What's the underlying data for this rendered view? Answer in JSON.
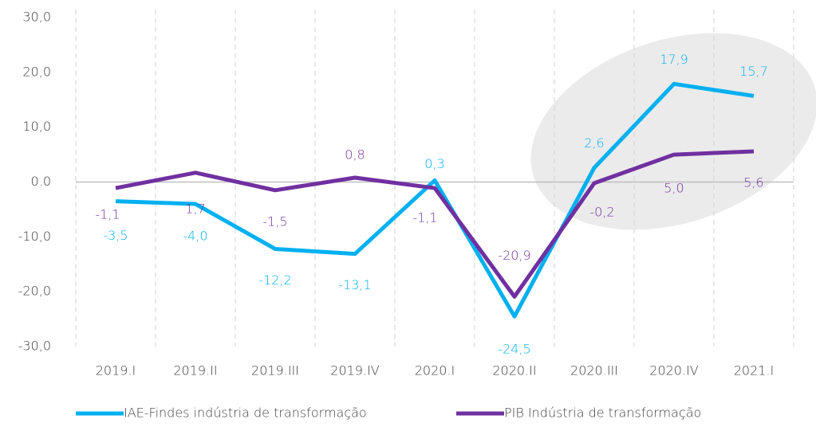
{
  "chart_data": {
    "type": "line",
    "categories": [
      "2019.I",
      "2019.II",
      "2019.III",
      "2019.IV",
      "2020.I",
      "2020.II",
      "2020.III",
      "2020.IV",
      "2021.I"
    ],
    "series": [
      {
        "name": "IAE-Findes indústria de transformação",
        "color": "#00b0f0",
        "values": [
          -3.5,
          -4.0,
          -12.2,
          -13.1,
          0.3,
          -24.5,
          2.6,
          17.9,
          15.7
        ],
        "value_labels": [
          "-3,5",
          "-4,0",
          "-12,2",
          "-13,1",
          "0,3",
          "-24,5",
          "2,6",
          "17,9",
          "15,7"
        ]
      },
      {
        "name": "PIB Indústria de transformação",
        "color": "#7030a0",
        "values": [
          -1.1,
          1.7,
          -1.5,
          0.8,
          -1.1,
          -20.9,
          -0.2,
          5.0,
          5.6
        ],
        "value_labels": [
          "-1,1",
          "1,7",
          "-1,5",
          "0,8",
          "-1,1",
          "-20,9",
          "-0,2",
          "5,0",
          "5,6"
        ]
      }
    ],
    "ylim": [
      -30,
      30
    ],
    "yticks": [
      {
        "value": 30,
        "label": "30,0"
      },
      {
        "value": 20,
        "label": "20,0"
      },
      {
        "value": 10,
        "label": "10,0"
      },
      {
        "value": 0,
        "label": "0.0"
      },
      {
        "value": -10,
        "label": "-10,0"
      },
      {
        "value": -20,
        "label": "-20,0"
      },
      {
        "value": -30,
        "label": "-30,0"
      }
    ],
    "legend": "bottom"
  }
}
